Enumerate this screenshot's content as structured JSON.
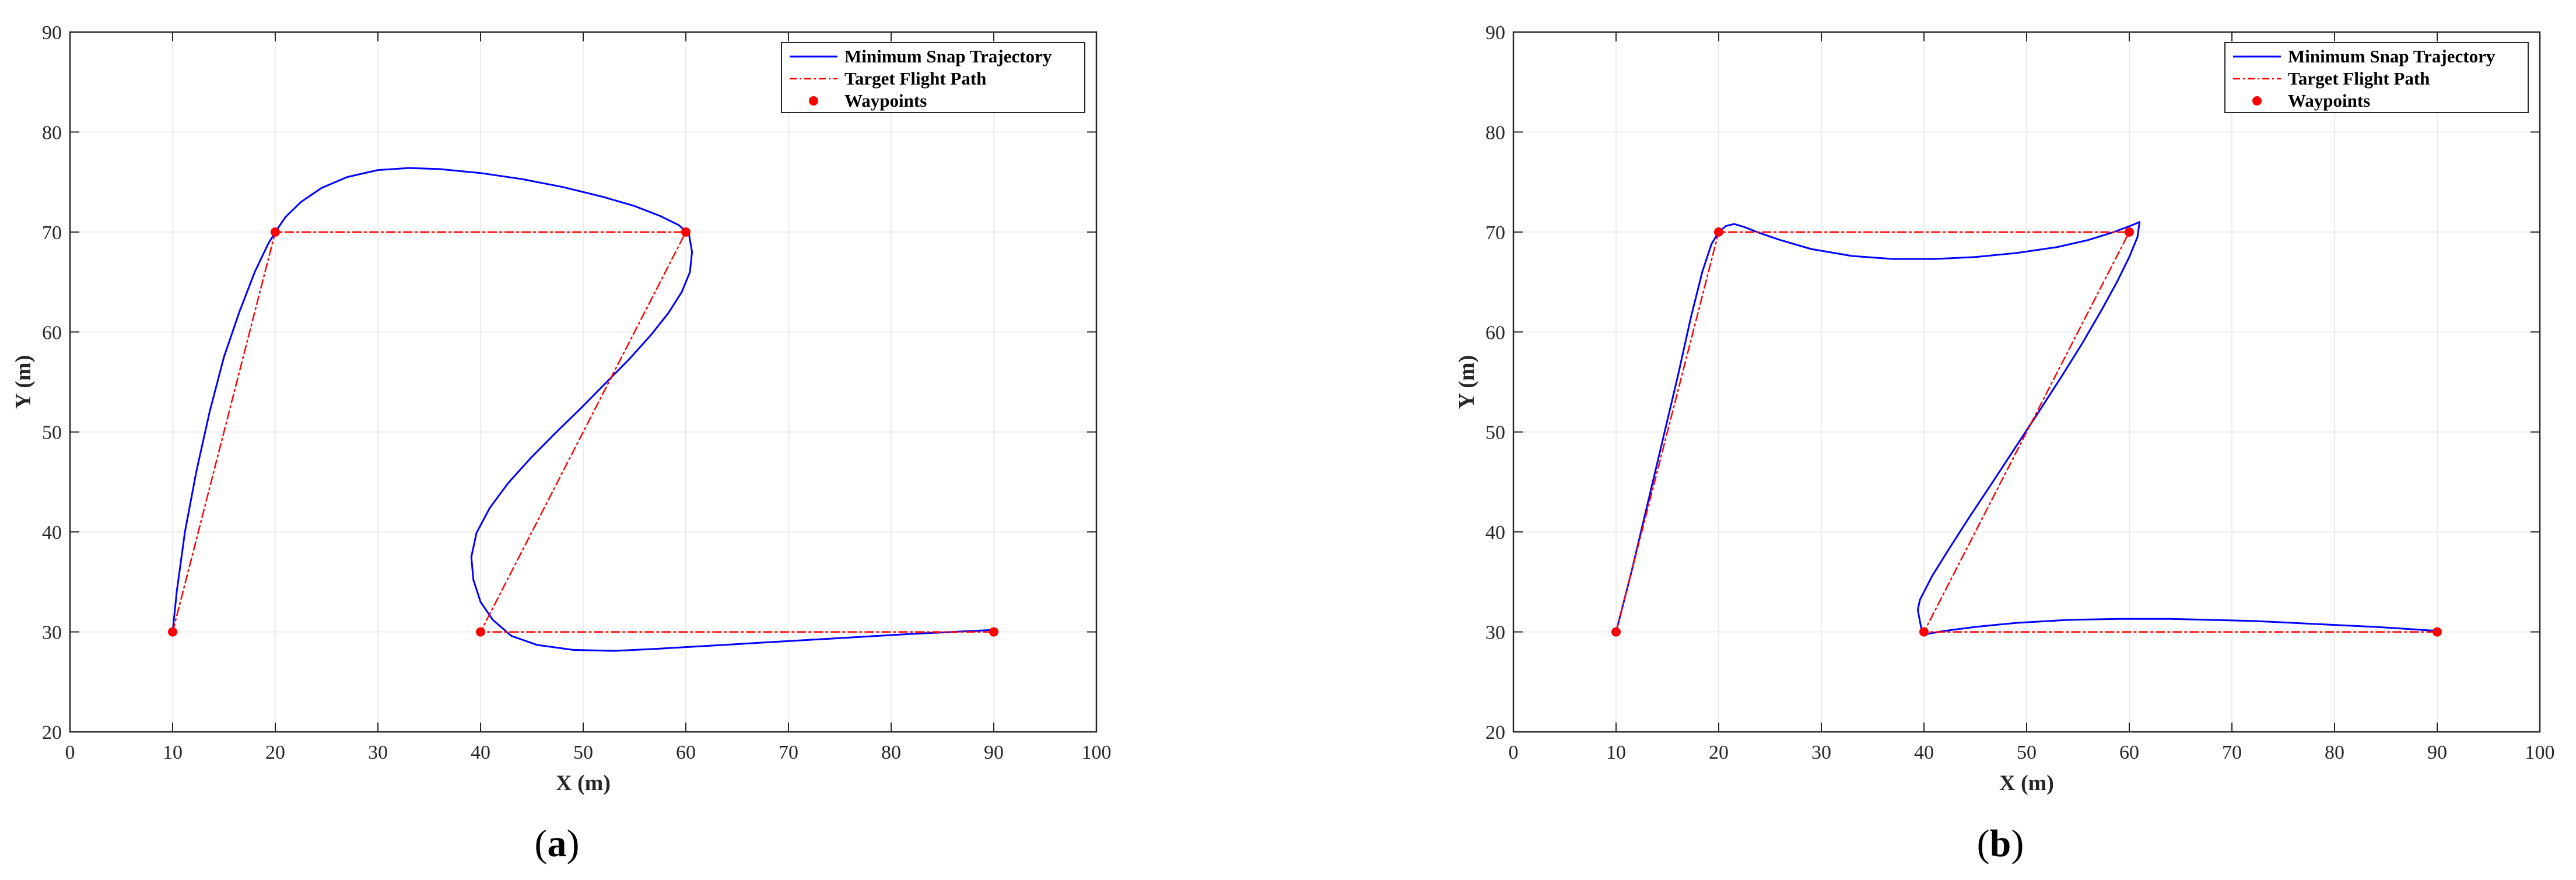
{
  "chart_data": [
    {
      "type": "line",
      "caption": "a",
      "xlabel": "X (m)",
      "ylabel": "Y (m)",
      "xlim": [
        0,
        100
      ],
      "ylim": [
        20,
        90
      ],
      "xticks": [
        0,
        10,
        20,
        30,
        40,
        50,
        60,
        70,
        80,
        90,
        100
      ],
      "yticks": [
        20,
        30,
        40,
        50,
        60,
        70,
        80,
        90
      ],
      "grid": true,
      "legend_position": "top-right",
      "series": [
        {
          "name": "Minimum Snap Trajectory",
          "style": "solid",
          "color": "#0000ff",
          "x": [
            10,
            10.4,
            11.2,
            12.3,
            13.6,
            15,
            16.5,
            18,
            19.3,
            20,
            21,
            22.5,
            24.5,
            27,
            30,
            33,
            36,
            40,
            44,
            48,
            52,
            55,
            57.5,
            59.3,
            60.3,
            60.6,
            60.4,
            59.6,
            58.3,
            56.6,
            54.5,
            52.2,
            49.8,
            47.3,
            44.9,
            42.7,
            40.9,
            39.6,
            39.1,
            39.3,
            40,
            41.2,
            43,
            45.5,
            49,
            53,
            57,
            62,
            67,
            72,
            77,
            82,
            86,
            90
          ],
          "y": [
            30,
            34,
            40,
            46,
            52,
            57.5,
            62,
            66,
            68.8,
            70,
            71.5,
            73,
            74.4,
            75.5,
            76.2,
            76.4,
            76.3,
            75.9,
            75.3,
            74.5,
            73.5,
            72.6,
            71.6,
            70.7,
            69.8,
            68,
            66,
            64,
            61.9,
            59.7,
            57.3,
            54.9,
            52.4,
            49.9,
            47.4,
            44.9,
            42.4,
            39.9,
            37.5,
            35.2,
            33,
            31.2,
            29.6,
            28.7,
            28.2,
            28.1,
            28.3,
            28.6,
            28.9,
            29.2,
            29.5,
            29.8,
            30,
            30.2
          ]
        },
        {
          "name": "Target Flight Path",
          "style": "dash-dot",
          "color": "#ff0000",
          "x": [
            10,
            20,
            60,
            40,
            90
          ],
          "y": [
            30,
            70,
            70,
            30,
            30
          ]
        },
        {
          "name": "Waypoints",
          "style": "markers",
          "color": "#ff0000",
          "x": [
            10,
            20,
            60,
            40,
            90
          ],
          "y": [
            30,
            70,
            70,
            30,
            30
          ]
        }
      ]
    },
    {
      "type": "line",
      "caption": "b",
      "xlabel": "X (m)",
      "ylabel": "Y (m)",
      "xlim": [
        0,
        100
      ],
      "ylim": [
        20,
        90
      ],
      "xticks": [
        0,
        10,
        20,
        30,
        40,
        50,
        60,
        70,
        80,
        90,
        100
      ],
      "yticks": [
        20,
        30,
        40,
        50,
        60,
        70,
        80,
        90
      ],
      "grid": true,
      "legend_position": "top-right",
      "series": [
        {
          "name": "Minimum Snap Trajectory",
          "style": "solid",
          "color": "#0000ff",
          "x": [
            10,
            11.5,
            13,
            14.5,
            16,
            17.3,
            18.4,
            19.3,
            20,
            20.7,
            21.5,
            22.5,
            24,
            26,
            29,
            33,
            37,
            41,
            45,
            49,
            53,
            56,
            58.5,
            60.3,
            61,
            60.8,
            60,
            58.8,
            57.3,
            55.5,
            53.5,
            51.3,
            49,
            46.7,
            44.5,
            42.5,
            40.8,
            39.6,
            39.4,
            39.8,
            40.3,
            42,
            45,
            49,
            54,
            59,
            64,
            68,
            72,
            76,
            80,
            84,
            87,
            90
          ],
          "y": [
            30,
            36,
            42.5,
            49,
            55.5,
            61.5,
            66,
            68.8,
            70,
            70.6,
            70.8,
            70.5,
            69.9,
            69.2,
            68.3,
            67.6,
            67.3,
            67.3,
            67.5,
            67.9,
            68.5,
            69.2,
            70,
            70.7,
            71,
            69.5,
            67.5,
            65,
            62.2,
            59,
            55.7,
            52.2,
            48.6,
            45,
            41.6,
            38.4,
            35.6,
            33.2,
            32.2,
            30,
            29.8,
            30.1,
            30.5,
            30.9,
            31.2,
            31.3,
            31.3,
            31.2,
            31.1,
            30.9,
            30.7,
            30.5,
            30.3,
            30.1
          ]
        },
        {
          "name": "Target Flight Path",
          "style": "dash-dot",
          "color": "#ff0000",
          "x": [
            10,
            20,
            60,
            40,
            90
          ],
          "y": [
            30,
            70,
            70,
            30,
            30
          ]
        },
        {
          "name": "Waypoints",
          "style": "markers",
          "color": "#ff0000",
          "x": [
            10,
            20,
            60,
            40,
            90
          ],
          "y": [
            30,
            70,
            70,
            30,
            30
          ]
        }
      ]
    }
  ]
}
